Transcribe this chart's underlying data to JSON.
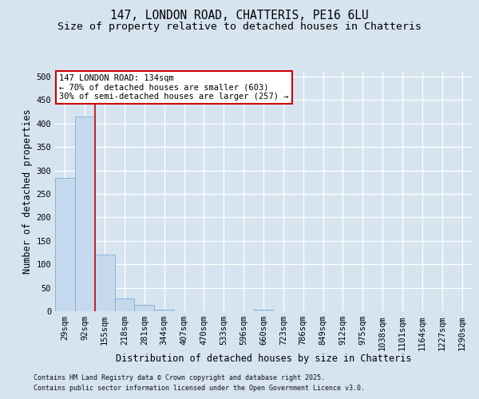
{
  "title_line1": "147, LONDON ROAD, CHATTERIS, PE16 6LU",
  "title_line2": "Size of property relative to detached houses in Chatteris",
  "xlabel": "Distribution of detached houses by size in Chatteris",
  "ylabel": "Number of detached properties",
  "categories": [
    "29sqm",
    "92sqm",
    "155sqm",
    "218sqm",
    "281sqm",
    "344sqm",
    "407sqm",
    "470sqm",
    "533sqm",
    "596sqm",
    "660sqm",
    "723sqm",
    "786sqm",
    "849sqm",
    "912sqm",
    "975sqm",
    "1038sqm",
    "1101sqm",
    "1164sqm",
    "1227sqm",
    "1290sqm"
  ],
  "values": [
    284,
    415,
    121,
    28,
    13,
    3,
    0,
    0,
    0,
    0,
    3,
    0,
    0,
    0,
    0,
    0,
    0,
    0,
    0,
    0,
    0
  ],
  "bar_color": "#c5d8ee",
  "bar_edge_color": "#7aafd4",
  "vline_color": "#cc0000",
  "vline_position": 1.5,
  "annotation_text": "147 LONDON ROAD: 134sqm\n← 70% of detached houses are smaller (603)\n30% of semi-detached houses are larger (257) →",
  "annotation_box_facecolor": "#ffffff",
  "annotation_box_edgecolor": "#cc0000",
  "ylim": [
    0,
    510
  ],
  "yticks": [
    0,
    50,
    100,
    150,
    200,
    250,
    300,
    350,
    400,
    450,
    500
  ],
  "bg_color": "#d6e4f0",
  "grid_color": "#c0cfe0",
  "footer_line1": "Contains HM Land Registry data © Crown copyright and database right 2025.",
  "footer_line2": "Contains public sector information licensed under the Open Government Licence v3.0.",
  "title_fontsize": 10.5,
  "subtitle_fontsize": 9.5,
  "tick_fontsize": 7.5,
  "label_fontsize": 8.5,
  "annotation_fontsize": 7.5,
  "footer_fontsize": 6.0
}
